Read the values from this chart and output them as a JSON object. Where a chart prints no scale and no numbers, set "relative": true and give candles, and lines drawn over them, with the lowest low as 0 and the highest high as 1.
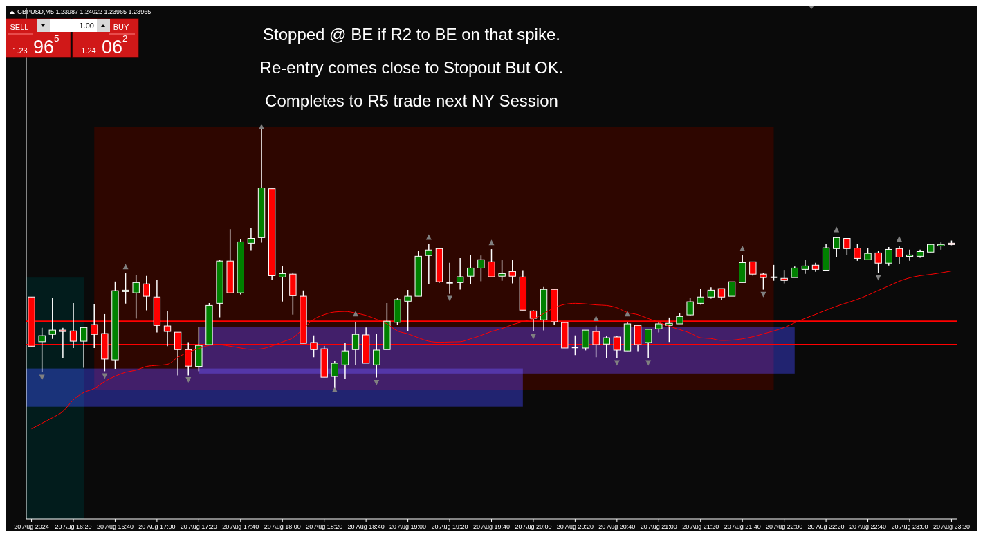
{
  "chart_data": {
    "type": "candlestick",
    "title": "GBPUSD,M5  1.23987 1.24022 1.23965 1.23965",
    "annotations": [
      "Stopped @ BE if R2 to BE on that spike.",
      "Re-entry comes close to Stopout But OK.",
      "Completes to R5 trade next NY Session",
      "SELL",
      "BUY",
      "1.00",
      "1.23",
      "96$^{5}$",
      "1.24",
      "06$^{2}$"
    ],
    "relative": true,
    "tick_labels": "x",
    "colors": [
      "#ff0000",
      "#008000",
      "#008000",
      "#ff0000",
      "#ff0000",
      "#008000",
      "#ff0000",
      "#ff0000",
      "#008000",
      "#008000",
      "#008000",
      "#ff0000",
      "#ff0000",
      "#ff0000",
      "#ff0000",
      "#ff0000",
      "#008000",
      "#008000",
      "#008000",
      "#ff0000",
      "#008000",
      "#008000",
      "#008000",
      "#ff0000",
      "#008000",
      "#ff0000",
      "#ff0000",
      "#ff0000",
      "#ff0000",
      "#008000",
      "#008000",
      "#008000",
      "#ff0000",
      "#008000",
      "#008000",
      "#008000",
      "#008000",
      "#008000",
      "#008000",
      "#ff0000",
      "#ffffff",
      "#008000",
      "#008000",
      "#008000",
      "#ff0000",
      "#008000",
      "#ff0000",
      "#ff0000",
      "#ff0000",
      "#008000",
      "#ff0000",
      "#ff0000",
      "#ffffff",
      "#008000",
      "#ff0000",
      "#008000",
      "#ff0000",
      "#008000",
      "#ff0000",
      "#008000",
      "#008000",
      "#008000",
      "#008000",
      "#008000",
      "#008000",
      "#008000",
      "#ff0000",
      "#008000",
      "#008000",
      "#ff0000",
      "#ff0000",
      "#ffffff",
      "#ff0000",
      "#008000",
      "#008000",
      "#ff0000",
      "#008000",
      "#008000",
      "#ff0000",
      "#ff0000",
      "#008000",
      "#ff0000",
      "#008000",
      "#ff0000",
      "#008000",
      "#008000",
      "#008000",
      "#008000",
      "#ff0000"
    ],
    "categories": [
      "20 Aug 2024",
      null,
      null,
      null,
      "20 Aug 16:20",
      null,
      null,
      null,
      "20 Aug 16:40",
      null,
      null,
      null,
      "20 Aug 17:00",
      null,
      null,
      null,
      "20 Aug 17:20",
      null,
      null,
      null,
      "20 Aug 17:40",
      null,
      null,
      null,
      "20 Aug 18:00",
      null,
      null,
      null,
      "20 Aug 18:20",
      null,
      null,
      null,
      "20 Aug 18:40",
      null,
      null,
      null,
      "20 Aug 19:00",
      null,
      null,
      null,
      "20 Aug 19:20",
      null,
      null,
      null,
      "20 Aug 19:40",
      null,
      null,
      null,
      "20 Aug 20:00",
      null,
      null,
      null,
      "20 Aug 20:20",
      null,
      null,
      null,
      "20 Aug 20:40",
      null,
      null,
      null,
      "20 Aug 21:00",
      null,
      null,
      null,
      "20 Aug 21:20",
      null,
      null,
      null,
      "20 Aug 21:40",
      null,
      null,
      null,
      "20 Aug 22:00",
      null,
      null,
      null,
      "20 Aug 22:20",
      null,
      null,
      null,
      "20 Aug 22:40",
      null,
      null,
      null,
      "20 Aug 23:00",
      null,
      null,
      null,
      "20 Aug 23:20"
    ],
    "ohlc": [
      [
        0.352,
        0.352,
        0.165,
        0.165
      ],
      [
        0.182,
        0.235,
        0.066,
        0.205
      ],
      [
        0.21,
        0.35,
        0.193,
        0.226
      ],
      [
        0.226,
        0.235,
        0.12,
        0.221
      ],
      [
        0.223,
        0.329,
        0.158,
        0.184
      ],
      [
        0.184,
        0.236,
        0.083,
        0.236
      ],
      [
        0.247,
        0.326,
        0.158,
        0.21
      ],
      [
        0.213,
        0.287,
        0.07,
        0.116
      ],
      [
        0.113,
        0.411,
        0.079,
        0.376
      ],
      [
        0.373,
        0.442,
        0.327,
        0.378
      ],
      [
        0.368,
        0.437,
        0.27,
        0.407
      ],
      [
        0.402,
        0.432,
        0.301,
        0.355
      ],
      [
        0.352,
        0.416,
        0.217,
        0.244
      ],
      [
        0.242,
        0.3,
        0.165,
        0.221
      ],
      [
        0.218,
        0.218,
        0.054,
        0.152
      ],
      [
        0.152,
        0.18,
        0.054,
        0.089
      ],
      [
        0.088,
        0.238,
        0.07,
        0.168
      ],
      [
        0.171,
        0.329,
        0.171,
        0.32
      ],
      [
        0.328,
        0.492,
        0.275,
        0.489
      ],
      [
        0.489,
        0.61,
        0.368,
        0.368
      ],
      [
        0.368,
        0.571,
        0.362,
        0.562
      ],
      [
        0.557,
        0.616,
        0.53,
        0.575
      ],
      [
        0.578,
        1,
        0.559,
        0.767
      ],
      [
        0.764,
        0.764,
        0.416,
        0.433
      ],
      [
        0.428,
        0.471,
        0.335,
        0.441
      ],
      [
        0.439,
        0.445,
        0.285,
        0.357
      ],
      [
        0.355,
        0.377,
        0.176,
        0.176
      ],
      [
        0.179,
        0.206,
        0.123,
        0.152
      ],
      [
        0.155,
        0.166,
        0.047,
        0.047
      ],
      [
        0.05,
        0.109,
        0,
        0.1
      ],
      [
        0.094,
        0.177,
        0.041,
        0.147
      ],
      [
        0.152,
        0.256,
        0.094,
        0.21
      ],
      [
        0.208,
        0.236,
        0.1,
        0.1
      ],
      [
        0.094,
        0.212,
        0.046,
        0.15
      ],
      [
        0.152,
        0.329,
        0.152,
        0.26
      ],
      [
        0.256,
        0.348,
        0.247,
        0.342
      ],
      [
        0.336,
        0.379,
        0.221,
        0.355
      ],
      [
        0.355,
        0.529,
        0.355,
        0.507
      ],
      [
        0.51,
        0.553,
        0.401,
        0.531
      ],
      [
        0.536,
        0.536,
        0.406,
        0.41
      ],
      [
        0.406,
        0.482,
        0.364,
        0.406
      ],
      [
        0.407,
        0.5,
        0.38,
        0.429
      ],
      [
        0.431,
        0.513,
        0.401,
        0.462
      ],
      [
        0.462,
        0.51,
        0.412,
        0.494
      ],
      [
        0.486,
        0.534,
        0.429,
        0.429
      ],
      [
        0.431,
        0.492,
        0.414,
        0.441
      ],
      [
        0.449,
        0.492,
        0.404,
        0.431
      ],
      [
        0.428,
        0.454,
        0.302,
        0.302
      ],
      [
        0.299,
        0.302,
        0.221,
        0.271
      ],
      [
        0.265,
        0.39,
        0.225,
        0.381
      ],
      [
        0.381,
        0.381,
        0.247,
        0.258
      ],
      [
        0.255,
        0.255,
        0.158,
        0.158
      ],
      [
        0.16,
        0.206,
        0.131,
        0.16
      ],
      [
        0.158,
        0.226,
        0.149,
        0.226
      ],
      [
        0.221,
        0.243,
        0.123,
        0.171
      ],
      [
        0.173,
        0.203,
        0.12,
        0.197
      ],
      [
        0.2,
        0.203,
        0.121,
        0.15
      ],
      [
        0.147,
        0.256,
        0.147,
        0.25
      ],
      [
        0.244,
        0.244,
        0.146,
        0.171
      ],
      [
        0.179,
        0.229,
        0.12,
        0.229
      ],
      [
        0.231,
        0.256,
        0.217,
        0.25
      ],
      [
        0.244,
        0.274,
        0.181,
        0.252
      ],
      [
        0.25,
        0.292,
        0.25,
        0.278
      ],
      [
        0.284,
        0.348,
        0.281,
        0.334
      ],
      [
        0.328,
        0.384,
        0.323,
        0.352
      ],
      [
        0.352,
        0.389,
        0.346,
        0.378
      ],
      [
        0.384,
        0.384,
        0.34,
        0.352
      ],
      [
        0.355,
        0.41,
        0.355,
        0.41
      ],
      [
        0.407,
        0.511,
        0.407,
        0.483
      ],
      [
        0.486,
        0.486,
        0.433,
        0.439
      ],
      [
        0.439,
        0.444,
        0.38,
        0.426
      ],
      [
        0.427,
        0.474,
        0.414,
        0.427
      ],
      [
        0.423,
        0.455,
        0.404,
        0.415
      ],
      [
        0.426,
        0.468,
        0.426,
        0.462
      ],
      [
        0.457,
        0.495,
        0.44,
        0.47
      ],
      [
        0.473,
        0.482,
        0.448,
        0.457
      ],
      [
        0.454,
        0.555,
        0.454,
        0.539
      ],
      [
        0.536,
        0.581,
        0.504,
        0.578
      ],
      [
        0.575,
        0.575,
        0.511,
        0.536
      ],
      [
        0.538,
        0.553,
        0.49,
        0.499
      ],
      [
        0.494,
        0.539,
        0.494,
        0.518
      ],
      [
        0.52,
        0.529,
        0.443,
        0.481
      ],
      [
        0.481,
        0.542,
        0.472,
        0.533
      ],
      [
        0.536,
        0.546,
        0.477,
        0.504
      ],
      [
        0.507,
        0.532,
        0.49,
        0.512
      ],
      [
        0.507,
        0.532,
        0.501,
        0.525
      ],
      [
        0.523,
        0.552,
        0.523,
        0.552
      ],
      [
        0.546,
        0.56,
        0.532,
        0.552
      ],
      [
        0.557,
        0.567,
        0.549,
        0.552
      ]
    ],
    "ref_lines": [
      {
        "axis": "y",
        "value": 0.26,
        "color": "#ff0000"
      },
      {
        "axis": "y",
        "value": 0.171,
        "color": "#ff0000"
      }
    ],
    "series": [
      {
        "type": "line",
        "color": "#ff0000",
        "values": [
          -0.149,
          -0.128,
          -0.107,
          -0.083,
          -0.039,
          -0.011,
          0.004,
          0.031,
          0.051,
          0.066,
          0.074,
          0.088,
          0.092,
          0.096,
          0.123,
          0.142,
          0.156,
          0.168,
          0.17,
          0.165,
          0.158,
          0.153,
          0.155,
          0.166,
          0.181,
          0.197,
          0.232,
          0.267,
          0.285,
          0.295,
          0.297,
          0.291,
          0.282,
          0.267,
          0.25,
          0.223,
          0.212,
          0.197,
          0.184,
          0.18,
          0.181,
          0.182,
          0.193,
          0.206,
          0.221,
          0.232,
          0.247,
          0.258,
          0.269,
          0.289,
          0.311,
          0.324,
          0.328,
          0.326,
          0.322,
          0.32,
          0.311,
          0.293,
          0.285,
          0.27,
          0.256,
          0.241,
          0.228,
          0.215,
          0.197,
          0.194,
          0.187,
          0.188,
          0.193,
          0.201,
          0.212,
          0.223,
          0.236,
          0.254,
          0.271,
          0.286,
          0.302,
          0.317,
          0.33,
          0.343,
          0.359,
          0.377,
          0.394,
          0.412,
          0.425,
          0.433,
          0.438,
          0.444,
          0.451
        ]
      },
      {
        "type": "scatter",
        "marker": "triangle",
        "color": "#808080",
        "values": [
          null,
          null,
          null,
          null,
          null,
          null,
          null,
          null,
          null,
          0.468,
          null,
          null,
          null,
          null,
          null,
          null,
          null,
          null,
          null,
          null,
          null,
          null,
          1,
          null,
          null,
          null,
          null,
          null,
          null,
          null,
          null,
          0.289,
          null,
          null,
          null,
          null,
          null,
          null,
          0.58,
          null,
          null,
          null,
          null,
          null,
          0.56,
          null,
          null,
          null,
          null,
          null,
          null,
          null,
          null,
          null,
          0.271,
          null,
          null,
          0.289,
          null,
          null,
          null,
          null,
          null,
          null,
          null,
          null,
          null,
          null,
          0.537,
          null,
          null,
          null,
          null,
          null,
          null,
          null,
          null,
          0.609,
          null,
          null,
          null,
          null,
          null,
          0.574,
          null,
          null,
          null,
          null,
          null
        ]
      },
      {
        "type": "scatter",
        "marker": "triangle",
        "color": "#808080",
        "values": [
          null,
          0.046,
          null,
          null,
          null,
          null,
          null,
          0.051,
          null,
          null,
          null,
          null,
          null,
          null,
          null,
          0.037,
          null,
          null,
          null,
          null,
          null,
          null,
          null,
          null,
          null,
          null,
          null,
          null,
          null,
          0,
          null,
          null,
          null,
          0.026,
          null,
          null,
          null,
          null,
          null,
          null,
          0.346,
          null,
          null,
          null,
          null,
          null,
          null,
          null,
          0.201,
          null,
          null,
          null,
          null,
          null,
          null,
          null,
          0.101,
          null,
          null,
          0.101,
          null,
          null,
          null,
          null,
          null,
          null,
          null,
          null,
          null,
          null,
          0.361,
          null,
          null,
          null,
          null,
          null,
          null,
          null,
          null,
          null,
          null,
          0.425,
          null,
          null,
          null,
          null,
          null,
          null,
          null
        ]
      }
    ]
  }
}
